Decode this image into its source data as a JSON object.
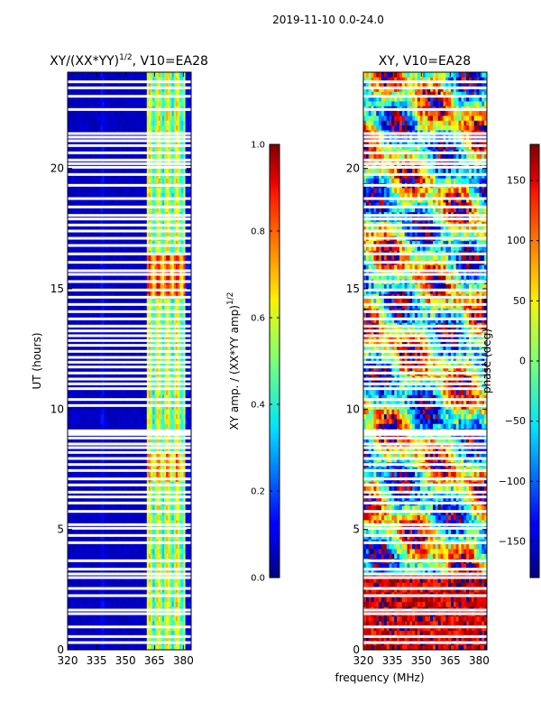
{
  "figure": {
    "suptitle": "2019-11-10 0.0-24.0",
    "shared_xlabel": "frequency (MHz)"
  },
  "chart_data": [
    {
      "type": "heatmap",
      "title": "XY/(XX*YY)",
      "title_exponent": "1/2",
      "title_suffix": ", V10=EA28",
      "xlabel": "frequency (MHz)",
      "ylabel": "UT (hours)",
      "xlim": [
        320,
        384
      ],
      "ylim": [
        0,
        24
      ],
      "xticks": [
        320,
        335,
        350,
        365,
        380
      ],
      "yticks": [
        0,
        5,
        10,
        15,
        20
      ],
      "colorbar": {
        "label": "XY amp. / (XX*YY amp)",
        "label_exponent": "1/2",
        "range": [
          0.0,
          1.0
        ],
        "ticks": [
          "0.0",
          "0.2",
          "0.4",
          "0.6",
          "0.8",
          "1.0"
        ],
        "colormap": "jet"
      },
      "description": "Normalized XY amplitude: low (~0.05) below 361 MHz, elevated (0.3-0.9) in 361-381 MHz band; horizontal white gaps are flagged data."
    },
    {
      "type": "heatmap",
      "title": "XY",
      "title_suffix": ", V10=EA28",
      "xlabel": "frequency (MHz)",
      "ylabel": "",
      "xlim": [
        320,
        384
      ],
      "ylim": [
        0,
        24
      ],
      "xticks": [
        320,
        335,
        350,
        365,
        380
      ],
      "yticks": [
        0,
        5,
        10,
        15,
        20
      ],
      "colorbar": {
        "label": "phase (deg)",
        "range": [
          -180,
          180
        ],
        "ticks": [
          "-150",
          "-100",
          "-50",
          "0",
          "50",
          "100",
          "150"
        ],
        "colormap": "jet"
      },
      "description": "XY phase spanning -180 to 180 deg, highly variable with time and frequency; horizontal white gaps are flagged data."
    }
  ],
  "flagged_gaps_hours": [
    0.3,
    0.55,
    0.95,
    1.5,
    1.65,
    2.25,
    2.55,
    3.0,
    3.15,
    3.35,
    3.7,
    4.45,
    4.75,
    5.05,
    5.2,
    5.75,
    6.1,
    6.35,
    6.55,
    6.85,
    7.1,
    7.45,
    7.7,
    7.95,
    8.2,
    8.4,
    8.55,
    8.8,
    8.95,
    9.0,
    9.1,
    10.15,
    10.4,
    10.85,
    11.05,
    11.25,
    11.5,
    11.75,
    11.95,
    12.15,
    12.4,
    12.65,
    12.85,
    13.05,
    13.25,
    13.45,
    13.75,
    14.05,
    14.35,
    14.65,
    14.95,
    15.3,
    15.6,
    15.75,
    16.1,
    16.45,
    16.8,
    17.1,
    17.4,
    17.65,
    17.9,
    18.05,
    18.4,
    18.75,
    19.3,
    19.75,
    20.05,
    20.2,
    20.35,
    20.65,
    20.95,
    21.15,
    21.3,
    21.45,
    22.45,
    23.0,
    23.35,
    23.6
  ]
}
